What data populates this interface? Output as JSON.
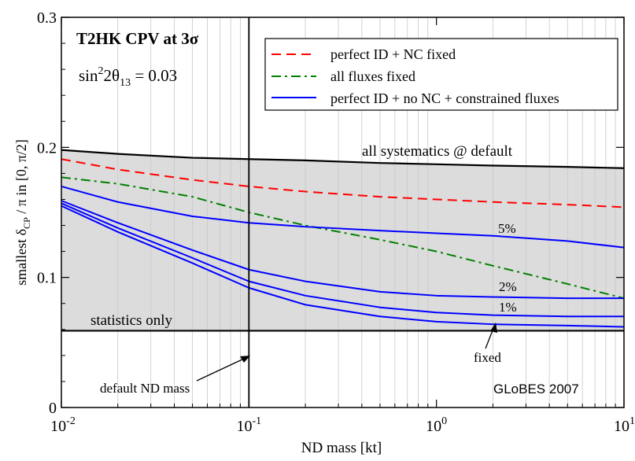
{
  "chart_data": {
    "type": "line",
    "x_scale": "log",
    "xlim": [
      0.01,
      10
    ],
    "ylim": [
      0,
      0.3
    ],
    "xlabel": "ND mass [kt]",
    "ylabel_parts": {
      "pre": "smallest  δ",
      "sub": "CP",
      "post": " / π   in [0, π/2]"
    },
    "x_ticks": [
      {
        "value": 0.01,
        "base": "10",
        "exp": "-2"
      },
      {
        "value": 0.1,
        "base": "10",
        "exp": "-1"
      },
      {
        "value": 1,
        "base": "10",
        "exp": "0"
      },
      {
        "value": 10,
        "base": "10",
        "exp": "1"
      }
    ],
    "y_ticks": [
      {
        "value": 0,
        "label": "0"
      },
      {
        "value": 0.1,
        "label": "0.1"
      },
      {
        "value": 0.2,
        "label": "0.2"
      },
      {
        "value": 0.3,
        "label": "0.3"
      }
    ],
    "grid": "vertical minor gridlines at log decades",
    "legend_position": "top-right",
    "legend": [
      {
        "label": "perfect ID + NC fixed",
        "color": "#ff0000",
        "style": "dashed"
      },
      {
        "label": "all fluxes fixed",
        "color": "#008000",
        "style": "dash-dot"
      },
      {
        "label": "perfect ID + no NC + constrained fluxes",
        "color": "#0000ff",
        "style": "solid"
      }
    ],
    "band": {
      "lower_series": "statistics only",
      "upper_series": "all systematics @ default",
      "color": "#dcdcdc"
    },
    "series": [
      {
        "name": "all systematics @ default",
        "color": "#000000",
        "style": "solid",
        "x": [
          0.01,
          0.02,
          0.05,
          0.1,
          0.2,
          0.5,
          1,
          2,
          5,
          10
        ],
        "y": [
          0.198,
          0.195,
          0.192,
          0.191,
          0.19,
          0.188,
          0.187,
          0.186,
          0.185,
          0.184
        ]
      },
      {
        "name": "statistics only",
        "color": "#000000",
        "style": "solid",
        "x": [
          0.01,
          10
        ],
        "y": [
          0.059,
          0.059
        ]
      },
      {
        "name": "perfect ID + NC fixed",
        "color": "#ff0000",
        "style": "dashed",
        "x": [
          0.01,
          0.02,
          0.05,
          0.1,
          0.2,
          0.5,
          1,
          2,
          5,
          10
        ],
        "y": [
          0.191,
          0.183,
          0.175,
          0.17,
          0.166,
          0.162,
          0.16,
          0.158,
          0.156,
          0.154
        ]
      },
      {
        "name": "all fluxes fixed",
        "color": "#008000",
        "style": "dash-dot",
        "x": [
          0.01,
          0.02,
          0.05,
          0.1,
          0.2,
          0.5,
          1,
          2,
          5,
          10
        ],
        "y": [
          0.177,
          0.172,
          0.162,
          0.15,
          0.14,
          0.129,
          0.12,
          0.109,
          0.095,
          0.084
        ]
      },
      {
        "name": "5%",
        "color": "#0000ff",
        "style": "solid",
        "x": [
          0.01,
          0.02,
          0.05,
          0.1,
          0.2,
          0.5,
          1,
          2,
          5,
          10
        ],
        "y": [
          0.17,
          0.158,
          0.147,
          0.142,
          0.139,
          0.136,
          0.134,
          0.132,
          0.128,
          0.123
        ]
      },
      {
        "name": "2%",
        "color": "#0000ff",
        "style": "solid",
        "x": [
          0.01,
          0.02,
          0.05,
          0.1,
          0.2,
          0.5,
          1,
          2,
          5,
          10
        ],
        "y": [
          0.159,
          0.142,
          0.121,
          0.106,
          0.097,
          0.089,
          0.086,
          0.085,
          0.084,
          0.084
        ]
      },
      {
        "name": "1%",
        "color": "#0000ff",
        "style": "solid",
        "x": [
          0.01,
          0.02,
          0.05,
          0.1,
          0.2,
          0.5,
          1,
          2,
          5,
          10
        ],
        "y": [
          0.157,
          0.138,
          0.115,
          0.097,
          0.086,
          0.077,
          0.073,
          0.071,
          0.07,
          0.07
        ]
      },
      {
        "name": "fixed",
        "color": "#0000ff",
        "style": "solid",
        "x": [
          0.01,
          0.02,
          0.05,
          0.1,
          0.2,
          0.5,
          1,
          2,
          5,
          10
        ],
        "y": [
          0.155,
          0.135,
          0.111,
          0.092,
          0.079,
          0.07,
          0.066,
          0.064,
          0.063,
          0.062
        ]
      }
    ],
    "annotations": {
      "title": "T2HK  CPV at 3σ",
      "theta": {
        "pre": "sin",
        "sup": "2",
        "mid": "2θ",
        "sub": "13",
        "post": " = 0.03"
      },
      "all_sys": "all systematics @ default",
      "stat_only": "statistics only",
      "pct5": "5%",
      "pct2": "2%",
      "pct1": "1%",
      "fixed": "fixed",
      "default_nd": "default ND mass",
      "globes": "GLoBES 2007"
    }
  }
}
